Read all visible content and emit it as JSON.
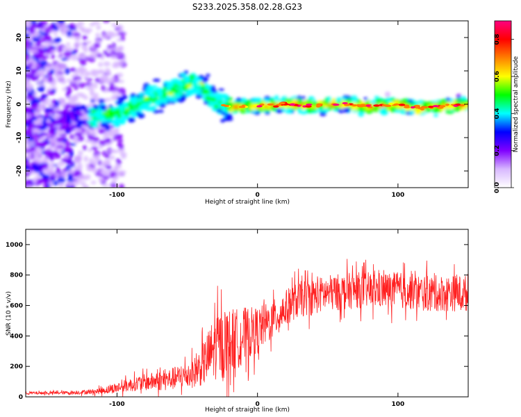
{
  "chart_data": [
    {
      "type": "heatmap",
      "title": "S233.2025.358.02.28.G23",
      "xlabel": "Height of straight line (km)",
      "ylabel": "Frequency (Hz)",
      "xlim": [
        -165,
        150
      ],
      "ylim": [
        -25,
        25
      ],
      "x_ticks": [
        -100,
        0,
        100
      ],
      "y_ticks": [
        -20,
        -10,
        0,
        10,
        20
      ],
      "colorbar": {
        "label": "Normalized spectral amplitude",
        "range": [
          0,
          0.9
        ],
        "ticks": [
          0.0,
          0.2,
          0.4,
          0.6,
          0.8
        ],
        "colors": [
          "#ffffff",
          "#d8b8ff",
          "#8000ff",
          "#0000ff",
          "#00ffff",
          "#00ff00",
          "#ffff00",
          "#ff8000",
          "#ff0000",
          "#ff0080"
        ]
      },
      "ridge": {
        "x": [
          -165,
          -150,
          -130,
          -115,
          -105,
          -95,
          -85,
          -75,
          -65,
          -55,
          -45,
          -40,
          -35,
          -30,
          -25,
          -20,
          -10,
          0,
          20,
          40,
          60,
          80,
          100,
          110,
          120,
          135,
          150
        ],
        "frequency": [
          -5,
          -5,
          -4,
          -4,
          -3,
          -2,
          0,
          2,
          3,
          5,
          6,
          6,
          3,
          1,
          0,
          -1,
          -0.5,
          -0.5,
          0,
          -0.5,
          0,
          -0.5,
          0,
          -1,
          -1,
          -0.5,
          0
        ]
      }
    },
    {
      "type": "line",
      "xlabel": "Height of straight line (km)",
      "ylabel": "SNR (10 * v/v)",
      "xlim": [
        -165,
        150
      ],
      "ylim": [
        0,
        1100
      ],
      "x_ticks": [
        -100,
        0,
        100
      ],
      "y_ticks": [
        0,
        200,
        400,
        600,
        800,
        1000
      ],
      "series": [
        {
          "name": "SNR",
          "color": "#ff2020",
          "x": [
            -165,
            -150,
            -130,
            -115,
            -105,
            -95,
            -85,
            -75,
            -65,
            -55,
            -45,
            -40,
            -35,
            -30,
            -25,
            -20,
            -15,
            -10,
            -5,
            0,
            5,
            10,
            15,
            20,
            25,
            30,
            40,
            50,
            60,
            70,
            80,
            90,
            100,
            110,
            120,
            130,
            140,
            150
          ],
          "y": [
            25,
            25,
            28,
            35,
            50,
            70,
            90,
            100,
            110,
            130,
            160,
            200,
            260,
            330,
            350,
            360,
            380,
            400,
            420,
            440,
            470,
            500,
            540,
            580,
            620,
            640,
            660,
            680,
            690,
            700,
            700,
            700,
            700,
            690,
            680,
            680,
            680,
            680
          ],
          "spread": [
            10,
            10,
            12,
            18,
            30,
            40,
            50,
            60,
            70,
            80,
            100,
            130,
            180,
            220,
            230,
            220,
            200,
            190,
            170,
            150,
            140,
            130,
            120,
            120,
            120,
            120,
            120,
            120,
            120,
            120,
            120,
            120,
            120,
            120,
            120,
            120,
            120,
            120
          ]
        }
      ]
    }
  ]
}
